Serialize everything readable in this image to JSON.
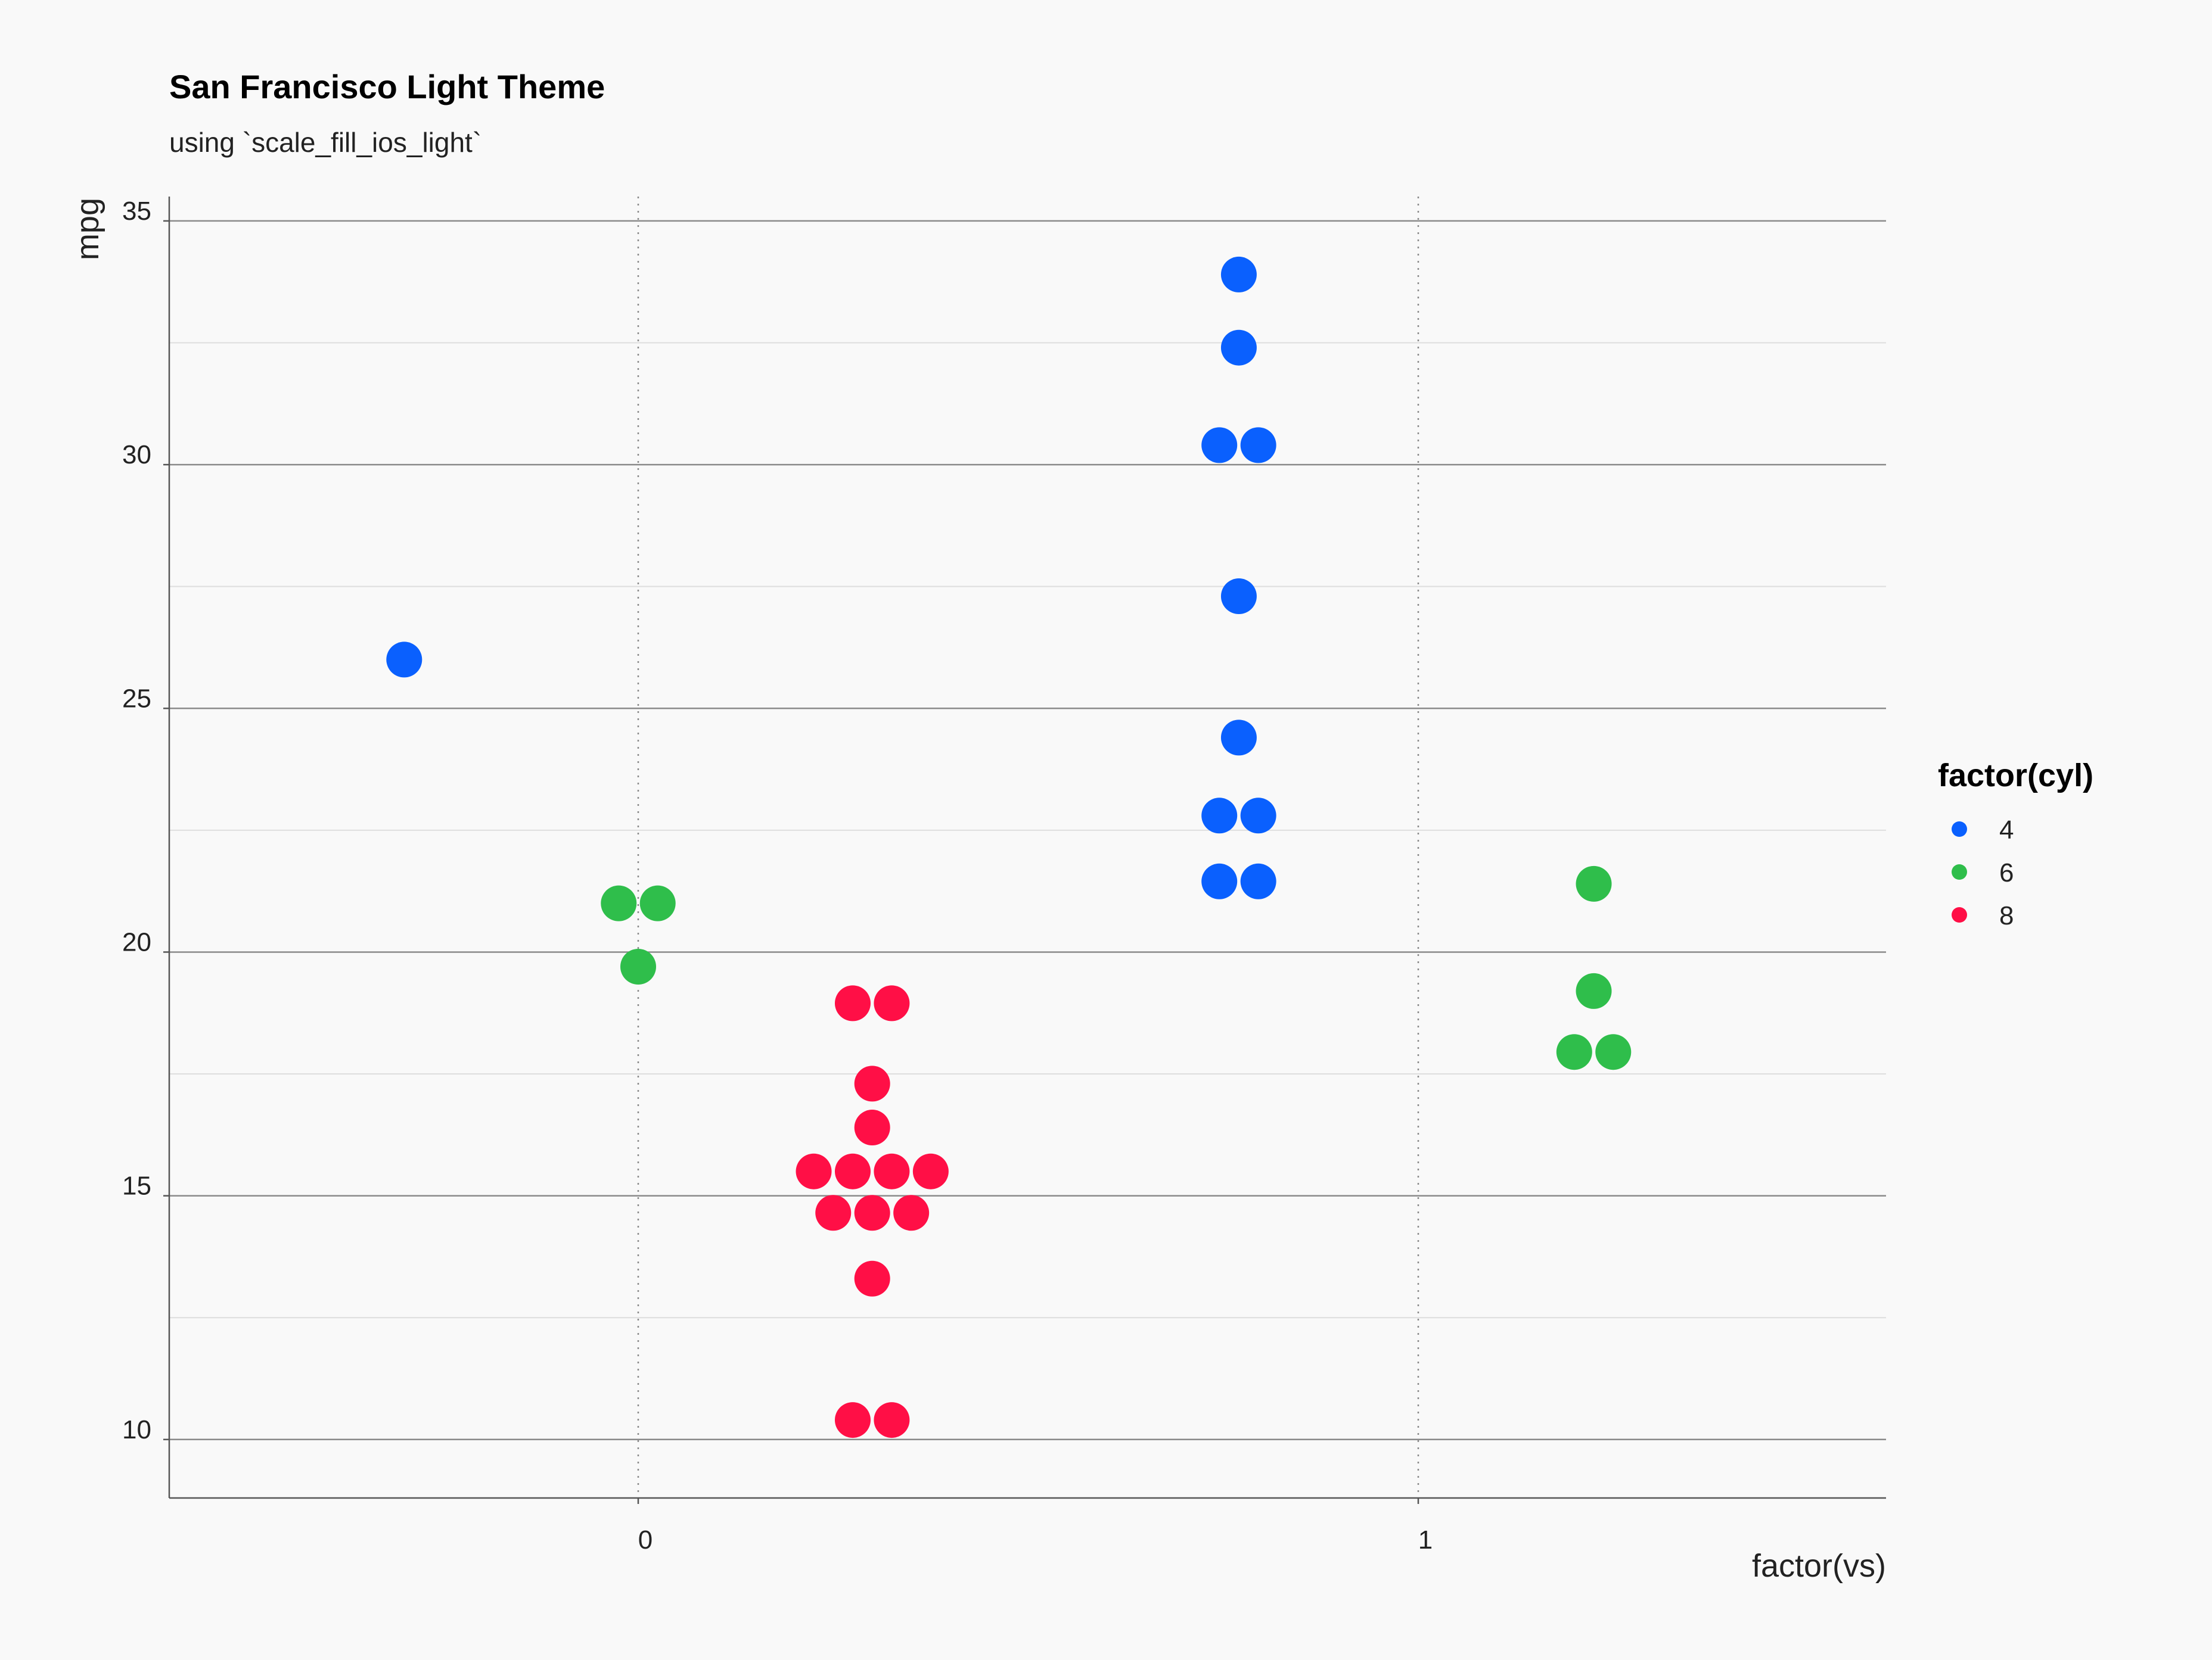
{
  "chart_data": {
    "type": "scatter",
    "title": "San Francisco Light Theme",
    "subtitle": "using `scale_fill_ios_light`",
    "xlabel": "factor(vs)",
    "ylabel": "mpg",
    "x_ticks": [
      "0",
      "1"
    ],
    "y_ticks": [
      10,
      15,
      20,
      25,
      30,
      35
    ],
    "ylim": [
      8.8,
      35.5
    ],
    "legend": {
      "title": "factor(cyl)",
      "position": "right",
      "entries": [
        {
          "label": "4",
          "color": "#0a60fe"
        },
        {
          "label": "6",
          "color": "#2fbe4b"
        },
        {
          "label": "8",
          "color": "#ff0f46"
        }
      ]
    },
    "series": [
      {
        "name": "4",
        "color": "#0a60fe",
        "points": [
          {
            "x": -0.3,
            "y": 26.0
          },
          {
            "x": 0.77,
            "y": 33.9
          },
          {
            "x": 0.77,
            "y": 32.4
          },
          {
            "x": 0.745,
            "y": 30.4
          },
          {
            "x": 0.795,
            "y": 30.4
          },
          {
            "x": 0.77,
            "y": 27.3
          },
          {
            "x": 0.77,
            "y": 24.4
          },
          {
            "x": 0.745,
            "y": 22.8
          },
          {
            "x": 0.795,
            "y": 22.8
          },
          {
            "x": 0.745,
            "y": 21.45
          },
          {
            "x": 0.795,
            "y": 21.45
          }
        ]
      },
      {
        "name": "6",
        "color": "#2fbe4b",
        "points": [
          {
            "x": -0.025,
            "y": 21.0
          },
          {
            "x": 0.025,
            "y": 21.0
          },
          {
            "x": 0.0,
            "y": 19.7
          },
          {
            "x": 1.225,
            "y": 21.4
          },
          {
            "x": 1.225,
            "y": 19.2
          },
          {
            "x": 1.2,
            "y": 17.95
          },
          {
            "x": 1.25,
            "y": 17.95
          }
        ]
      },
      {
        "name": "8",
        "color": "#ff0f46",
        "points": [
          {
            "x": 0.275,
            "y": 18.95
          },
          {
            "x": 0.325,
            "y": 18.95
          },
          {
            "x": 0.3,
            "y": 17.3
          },
          {
            "x": 0.3,
            "y": 16.4
          },
          {
            "x": 0.225,
            "y": 15.5
          },
          {
            "x": 0.275,
            "y": 15.5
          },
          {
            "x": 0.325,
            "y": 15.5
          },
          {
            "x": 0.375,
            "y": 15.5
          },
          {
            "x": 0.25,
            "y": 14.65
          },
          {
            "x": 0.3,
            "y": 14.65
          },
          {
            "x": 0.35,
            "y": 14.65
          },
          {
            "x": 0.3,
            "y": 13.3
          },
          {
            "x": 0.275,
            "y": 10.4
          },
          {
            "x": 0.325,
            "y": 10.4
          }
        ]
      }
    ],
    "grid": true
  }
}
